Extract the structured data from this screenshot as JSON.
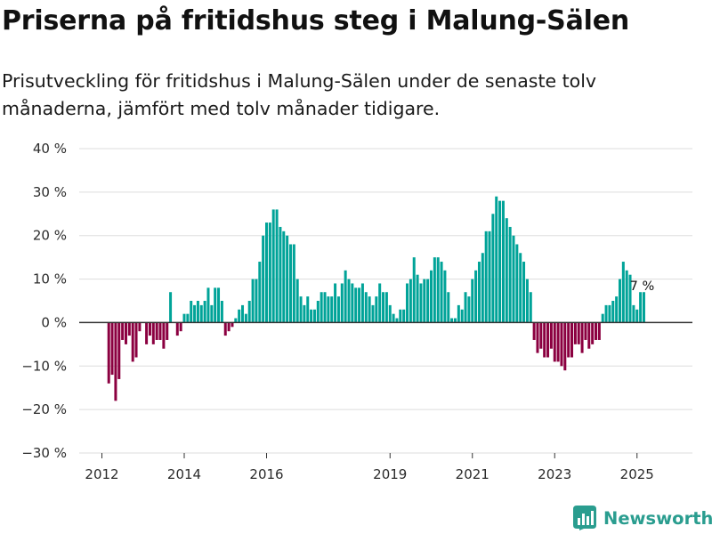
{
  "title": "Priserna på fritidshus steg i Malung-Sälen",
  "subtitle": "Prisutveckling för fritidshus i Malung-Sälen under de senaste tolv månaderna, jämfört med tolv månader tidigare.",
  "brand": "Newsworthy",
  "colors": {
    "positive": "#00a398",
    "negative": "#8b0040",
    "grid": "#dddddd",
    "brand": "#2a9d8f",
    "zero": "#333333"
  },
  "chart_data": {
    "type": "bar",
    "title": "Priserna på fritidshus steg i Malung-Sälen",
    "xlabel": "",
    "ylabel": "",
    "ylim": [
      -30,
      40
    ],
    "yticks": [
      -30,
      -20,
      -10,
      0,
      10,
      20,
      30,
      40
    ],
    "ytick_labels": [
      "−30 %",
      "−20 %",
      "−10 %",
      "0 %",
      "10 %",
      "20 %",
      "30 %",
      "40 %"
    ],
    "xticks": [
      2012,
      2014,
      2016,
      2019,
      2021,
      2023,
      2025
    ],
    "xtick_labels": [
      "2012",
      "2014",
      "2016",
      "2019",
      "2021",
      "2023",
      "2025"
    ],
    "start": {
      "year": 2012,
      "month": 3
    },
    "values": [
      -14,
      -12,
      -18,
      -13,
      -4,
      -5,
      -3,
      -9,
      -8,
      -2,
      0,
      -5,
      -3,
      -5,
      -4,
      -4,
      -6,
      -4,
      7,
      0,
      -3,
      -2,
      2,
      2,
      5,
      4,
      5,
      4,
      5,
      8,
      4,
      8,
      8,
      5,
      -3,
      -2,
      -1,
      1,
      3,
      4,
      2,
      5,
      10,
      10,
      14,
      20,
      23,
      23,
      26,
      26,
      22,
      21,
      20,
      18,
      18,
      10,
      6,
      4,
      6,
      3,
      3,
      5,
      7,
      7,
      6,
      6,
      9,
      6,
      9,
      12,
      10,
      9,
      8,
      8,
      9,
      7,
      6,
      4,
      6,
      9,
      7,
      7,
      4,
      2,
      1,
      3,
      3,
      9,
      10,
      15,
      11,
      9,
      10,
      10,
      12,
      15,
      15,
      14,
      12,
      7,
      1,
      1,
      4,
      3,
      7,
      6,
      10,
      12,
      14,
      16,
      21,
      21,
      25,
      29,
      28,
      28,
      24,
      22,
      20,
      18,
      16,
      14,
      10,
      7,
      -4,
      -7,
      -6,
      -8,
      -8,
      -6,
      -9,
      -9,
      -10,
      -11,
      -8,
      -8,
      -5,
      -5,
      -7,
      -4,
      -6,
      -5,
      -4,
      -4,
      2,
      4,
      4,
      5,
      6,
      10,
      14,
      12,
      11,
      4,
      3,
      7,
      7
    ],
    "annotation": {
      "text": "7 %",
      "value": 7
    }
  }
}
